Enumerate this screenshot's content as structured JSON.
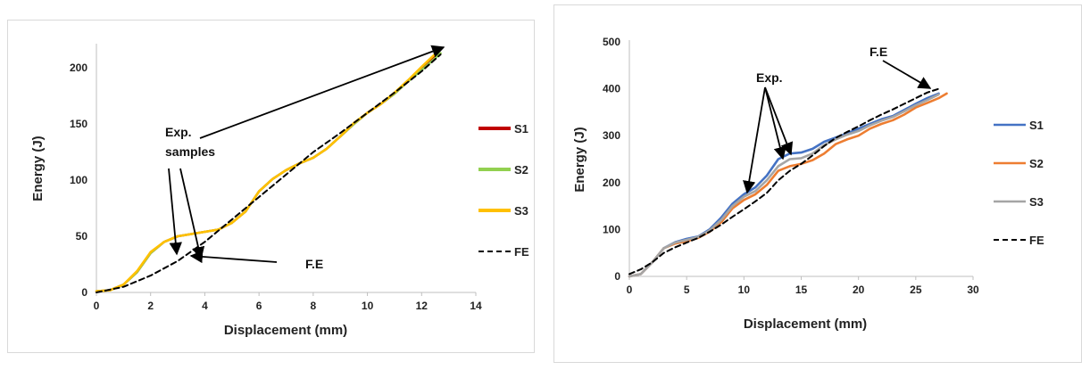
{
  "chart_data": [
    {
      "type": "line",
      "xlabel": "Displacement (mm)",
      "ylabel": "Energy (J)",
      "xlim": [
        0,
        14
      ],
      "ylim": [
        0,
        220
      ],
      "xticks": [
        0,
        2,
        4,
        6,
        8,
        10,
        12,
        14
      ],
      "yticks": [
        0,
        50,
        100,
        150,
        200
      ],
      "grid": false,
      "legend_position": "right",
      "annotations": [
        {
          "text_lines": [
            "Exp.",
            "samples"
          ]
        },
        {
          "text_lines": [
            "F.E"
          ]
        }
      ],
      "series": [
        {
          "name": "S1",
          "color": "#c00000",
          "dash": false,
          "x": [
            0,
            0.5,
            1,
            1.5,
            2,
            2.5,
            3,
            3.5,
            4,
            4.5,
            5,
            5.5,
            6,
            6.5,
            7,
            7.5,
            8,
            8.5,
            9,
            9.5,
            10,
            10.5,
            11,
            11.5,
            12,
            12.6
          ],
          "y": [
            1,
            2,
            7,
            18,
            35,
            45,
            50,
            52,
            54,
            56,
            62,
            72,
            90,
            101,
            109,
            115,
            120,
            128,
            139,
            150,
            160,
            168,
            177,
            188,
            200,
            212
          ]
        },
        {
          "name": "S2",
          "color": "#92d050",
          "dash": false,
          "x": [
            0,
            0.5,
            1,
            1.5,
            2,
            2.5,
            3,
            3.5,
            4,
            4.5,
            5,
            5.5,
            6,
            6.5,
            7,
            7.5,
            8,
            8.5,
            9,
            9.5,
            10,
            10.5,
            11,
            11.5,
            12,
            12.7
          ],
          "y": [
            1,
            2,
            7,
            18,
            35,
            45,
            50,
            52,
            54,
            56,
            62,
            72,
            90,
            101,
            109,
            115,
            120,
            128,
            139,
            150,
            160,
            168,
            177,
            188,
            198,
            213
          ]
        },
        {
          "name": "S3",
          "color": "#ffc000",
          "dash": false,
          "x": [
            0,
            0.5,
            1,
            1.5,
            2,
            2.5,
            3,
            3.5,
            4,
            4.5,
            5,
            5.5,
            6,
            6.5,
            7,
            7.5,
            8,
            8.5,
            9,
            9.5,
            10,
            10.5,
            11,
            11.5,
            12,
            12.7
          ],
          "y": [
            1,
            2,
            7,
            19,
            36,
            45,
            50,
            52,
            54,
            56,
            62,
            72,
            90,
            101,
            109,
            115,
            120,
            128,
            139,
            151,
            160,
            168,
            178,
            189,
            201,
            217
          ]
        },
        {
          "name": "FE",
          "color": "#000000",
          "dash": true,
          "x": [
            0,
            1,
            2,
            3,
            4,
            5,
            6,
            7,
            8,
            9,
            10,
            11,
            12,
            12.7
          ],
          "y": [
            0,
            5,
            15,
            28,
            45,
            65,
            85,
            105,
            125,
            142,
            160,
            178,
            197,
            212
          ]
        }
      ]
    },
    {
      "type": "line",
      "xlabel": "Displacement (mm)",
      "ylabel": "Energy (J)",
      "xlim": [
        0,
        30
      ],
      "ylim": [
        0,
        500
      ],
      "xticks": [
        0,
        5,
        10,
        15,
        20,
        25,
        30
      ],
      "yticks": [
        0,
        100,
        200,
        300,
        400,
        500
      ],
      "grid": false,
      "legend_position": "right",
      "annotations": [
        {
          "text_lines": [
            "Exp."
          ]
        },
        {
          "text_lines": [
            "F.E"
          ]
        }
      ],
      "series": [
        {
          "name": "S1",
          "color": "#4472c4",
          "dash": false,
          "x": [
            0,
            1,
            2,
            3,
            4,
            5,
            6,
            7,
            8,
            9,
            10,
            11,
            12,
            13,
            14,
            15,
            16,
            17,
            18,
            19,
            20,
            21,
            22,
            23,
            24,
            25,
            26,
            27
          ],
          "y": [
            0,
            5,
            30,
            60,
            73,
            80,
            85,
            100,
            125,
            155,
            175,
            190,
            215,
            250,
            262,
            264,
            272,
            287,
            296,
            305,
            315,
            325,
            335,
            342,
            355,
            368,
            380,
            390
          ]
        },
        {
          "name": "S2",
          "color": "#ed7d31",
          "dash": false,
          "x": [
            0,
            1,
            2,
            3,
            4,
            5,
            6,
            7,
            8,
            9,
            10,
            11,
            12,
            13,
            14,
            15,
            16,
            17,
            18,
            19,
            20,
            21,
            22,
            23,
            24,
            25,
            26,
            27,
            27.7
          ],
          "y": [
            0,
            5,
            30,
            60,
            70,
            75,
            82,
            95,
            115,
            145,
            163,
            175,
            195,
            225,
            235,
            240,
            248,
            262,
            282,
            292,
            300,
            315,
            325,
            333,
            345,
            360,
            370,
            380,
            390
          ]
        },
        {
          "name": "S3",
          "color": "#a5a5a5",
          "dash": false,
          "x": [
            0,
            1,
            2,
            3,
            4,
            5,
            6,
            7,
            8,
            9,
            10,
            11,
            12,
            13,
            14,
            15,
            16,
            17,
            18,
            19,
            20,
            21,
            22,
            23,
            24,
            25,
            26,
            27
          ],
          "y": [
            0,
            5,
            30,
            60,
            72,
            78,
            84,
            98,
            120,
            150,
            170,
            182,
            205,
            235,
            250,
            252,
            262,
            280,
            292,
            302,
            310,
            322,
            332,
            340,
            352,
            365,
            376,
            388
          ]
        },
        {
          "name": "FE",
          "color": "#000000",
          "dash": true,
          "x": [
            0,
            1,
            2,
            3,
            4,
            5,
            6,
            7,
            8,
            9,
            10,
            11,
            12,
            13,
            14,
            15,
            16,
            17,
            18,
            19,
            20,
            21,
            22,
            23,
            24,
            25,
            26,
            27
          ],
          "y": [
            5,
            15,
            30,
            50,
            62,
            72,
            82,
            95,
            110,
            127,
            143,
            160,
            178,
            205,
            225,
            240,
            258,
            278,
            295,
            308,
            320,
            333,
            345,
            356,
            368,
            380,
            392,
            400
          ]
        }
      ]
    }
  ]
}
